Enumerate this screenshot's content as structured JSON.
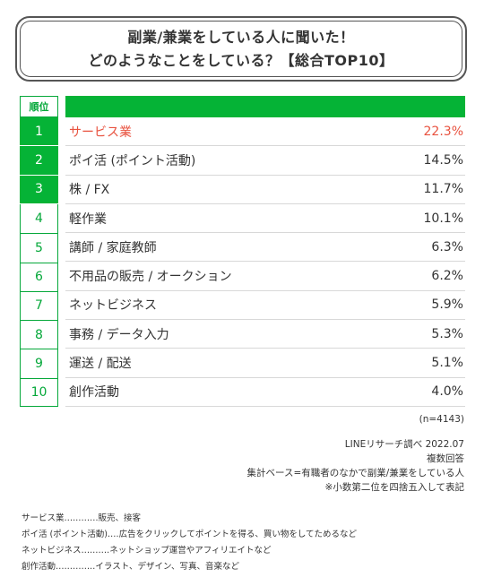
{
  "title": {
    "line1": "副業/兼業をしている人に聞いた！",
    "line2": "どのようなことをしている？【総合TOP10】"
  },
  "rank_header": "順位",
  "colors": {
    "green": "#05b336",
    "highlight": "#e8523f",
    "text": "#333333"
  },
  "chart_data": {
    "type": "table",
    "unit": "%",
    "rows": [
      {
        "rank": "1",
        "label": "サービス業",
        "value": 22.3,
        "value_text": "22.3%"
      },
      {
        "rank": "2",
        "label": "ポイ活 (ポイント活動)",
        "value": 14.5,
        "value_text": "14.5%"
      },
      {
        "rank": "3",
        "label": "株 / FX",
        "value": 11.7,
        "value_text": "11.7%"
      },
      {
        "rank": "4",
        "label": "軽作業",
        "value": 10.1,
        "value_text": "10.1%"
      },
      {
        "rank": "5",
        "label": "講師 / 家庭教師",
        "value": 6.3,
        "value_text": "6.3%"
      },
      {
        "rank": "6",
        "label": "不用品の販売 / オークション",
        "value": 6.2,
        "value_text": "6.2%"
      },
      {
        "rank": "7",
        "label": "ネットビジネス",
        "value": 5.9,
        "value_text": "5.9%"
      },
      {
        "rank": "8",
        "label": "事務 / データ入力",
        "value": 5.3,
        "value_text": "5.3%"
      },
      {
        "rank": "9",
        "label": "運送 / 配送",
        "value": 5.1,
        "value_text": "5.1%"
      },
      {
        "rank": "10",
        "label": "創作活動",
        "value": 4.0,
        "value_text": "4.0%"
      }
    ]
  },
  "notes": {
    "n": "(n=4143)",
    "source": "LINEリサーチ調べ 2022.07",
    "multi": "複数回答",
    "base": "集計ベース=有職者のなかで副業/兼業をしている人",
    "rounding": "※小数第二位を四捨五入して表記"
  },
  "footnotes": [
    "サービス業‥‥‥‥‥‥販売、接客",
    "ポイ活 (ポイント活動)‥‥広告をクリックしてポイントを得る、買い物をしてためるなど",
    "ネットビジネス‥‥‥‥‥ネットショップ運営やアフィリエイトなど",
    "創作活動‥‥‥‥‥‥‥イラスト、デザイン、写真、音楽など"
  ]
}
